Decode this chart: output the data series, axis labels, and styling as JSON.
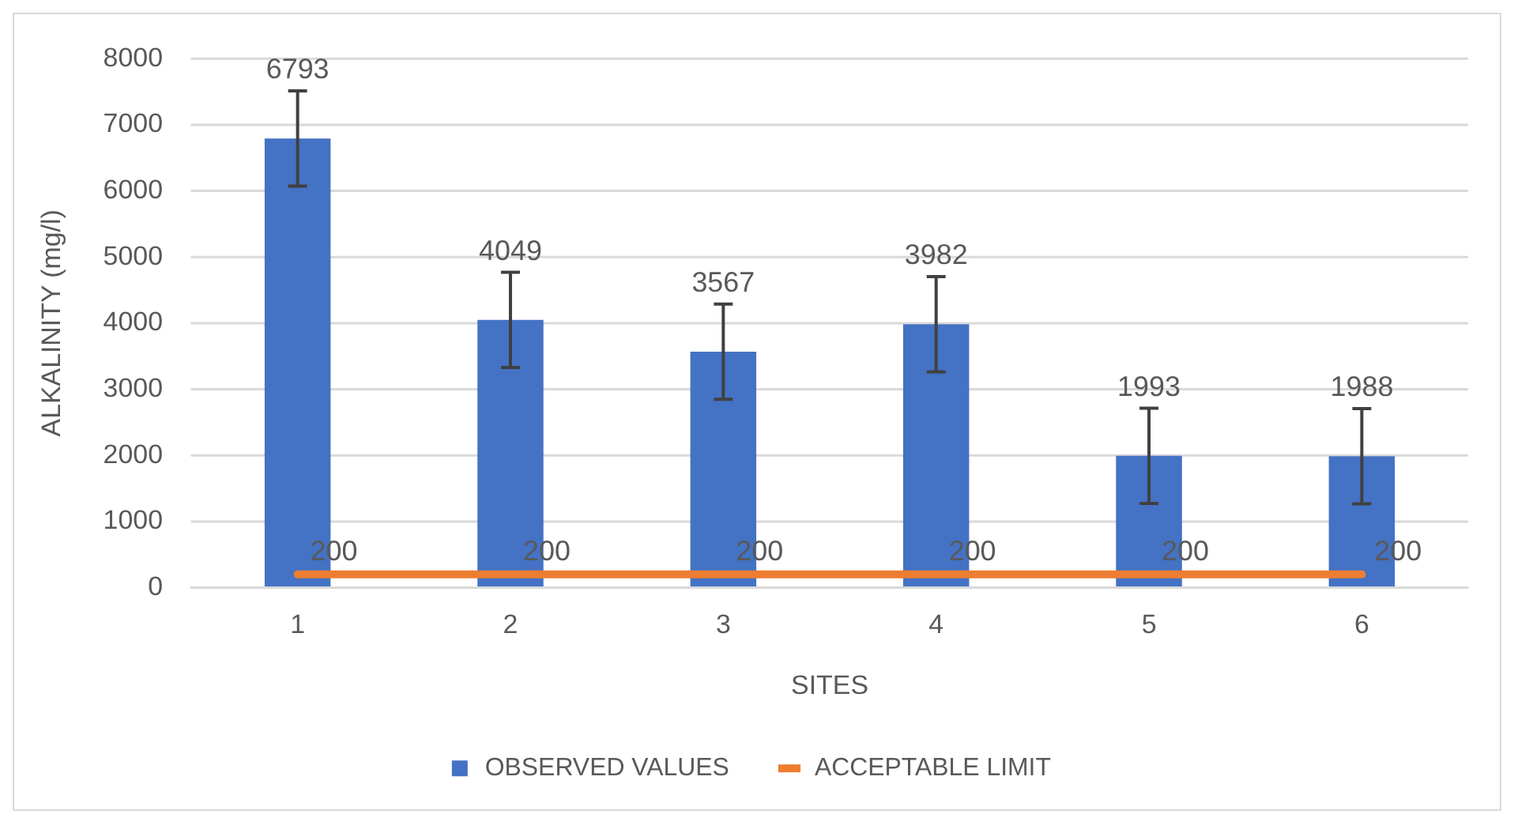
{
  "chart_data": {
    "type": "bar",
    "xlabel": "SITES",
    "ylabel": "ALKALINITY (mg/l)",
    "categories": [
      "1",
      "2",
      "3",
      "4",
      "5",
      "6"
    ],
    "series": [
      {
        "name": "OBSERVED VALUES",
        "color": "#4472c4",
        "values": [
          6793,
          4049,
          3567,
          3982,
          1993,
          1988
        ],
        "errors": [
          720,
          720,
          720,
          720,
          720,
          720
        ]
      },
      {
        "name": "ACCEPTABLE LIMIT",
        "type": "line",
        "color": "#ed7d31",
        "values": [
          200,
          200,
          200,
          200,
          200,
          200
        ]
      }
    ],
    "ylim": [
      0,
      8000
    ],
    "yticks": [
      0,
      1000,
      2000,
      3000,
      4000,
      5000,
      6000,
      7000,
      8000
    ],
    "grid": "y",
    "legend": "bottom",
    "data_labels": true,
    "marker": "none"
  }
}
